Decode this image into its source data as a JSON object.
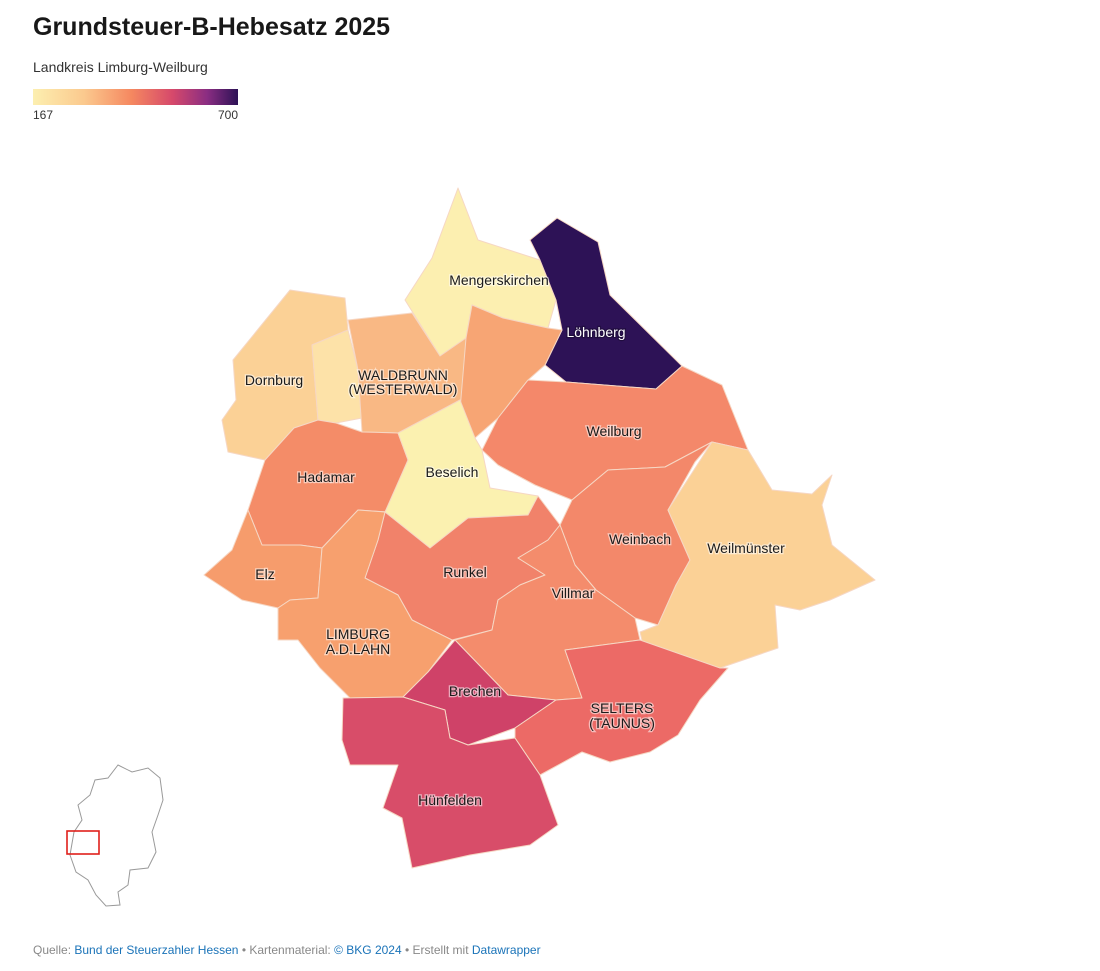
{
  "title": "Grundsteuer-B-Hebesatz 2025",
  "subtitle": "Landkreis Limburg-Weilburg",
  "legend": {
    "min": "167",
    "max": "700",
    "colors": [
      "#fcefb0",
      "#fbc98e",
      "#f58860",
      "#d6496b",
      "#8a2d82",
      "#2d1256"
    ]
  },
  "municipalities": [
    {
      "id": "mengerskirchen",
      "label": "Mengerskirchen",
      "color": "#fcefb0"
    },
    {
      "id": "loehnberg",
      "label": "Löhnberg",
      "color": "#2d1256"
    },
    {
      "id": "dornburg",
      "label": "Dornburg",
      "color": "#fbd196"
    },
    {
      "id": "waldbrunn",
      "label_line1": "WALDBRUNN",
      "label_line2": "(WESTERWALD)",
      "color": "#f9b884"
    },
    {
      "id": "elbtal",
      "color": "#fde2a8"
    },
    {
      "id": "merenberg",
      "color": "#f7a574"
    },
    {
      "id": "weilburg",
      "label": "Weilburg",
      "color": "#f4886a"
    },
    {
      "id": "hadamar",
      "label": "Hadamar",
      "color": "#f48c68"
    },
    {
      "id": "beselich",
      "label": "Beselich",
      "color": "#fbf1b0"
    },
    {
      "id": "weinbach",
      "label": "Weinbach",
      "color": "#f3886a"
    },
    {
      "id": "weilmuenster",
      "label": "Weilmünster",
      "color": "#fbd196"
    },
    {
      "id": "elz",
      "label": "Elz",
      "color": "#f69c6c"
    },
    {
      "id": "runkel",
      "label": "Runkel",
      "color": "#f1826a"
    },
    {
      "id": "villmar",
      "label": "Villmar",
      "color": "#f48c6c"
    },
    {
      "id": "limburg",
      "label_line1": "LIMBURG",
      "label_line2": "A.D.LAHN",
      "color": "#f7a06e"
    },
    {
      "id": "brechen",
      "label": "Brechen",
      "color": "#cf4268"
    },
    {
      "id": "selters",
      "label_line1": "SELTERS",
      "label_line2": "(TAUNUS)",
      "color": "#ec6a66"
    },
    {
      "id": "huenfelden",
      "label": "Hünfelden",
      "color": "#d84d69"
    }
  ],
  "footer": {
    "source_prefix": "Quelle:",
    "source_link": "Bund der Steuerzahler Hessen",
    "map_prefix": "Kartenmaterial:",
    "map_link": "© BKG 2024",
    "made_prefix": "Erstellt mit",
    "made_link": "Datawrapper"
  }
}
